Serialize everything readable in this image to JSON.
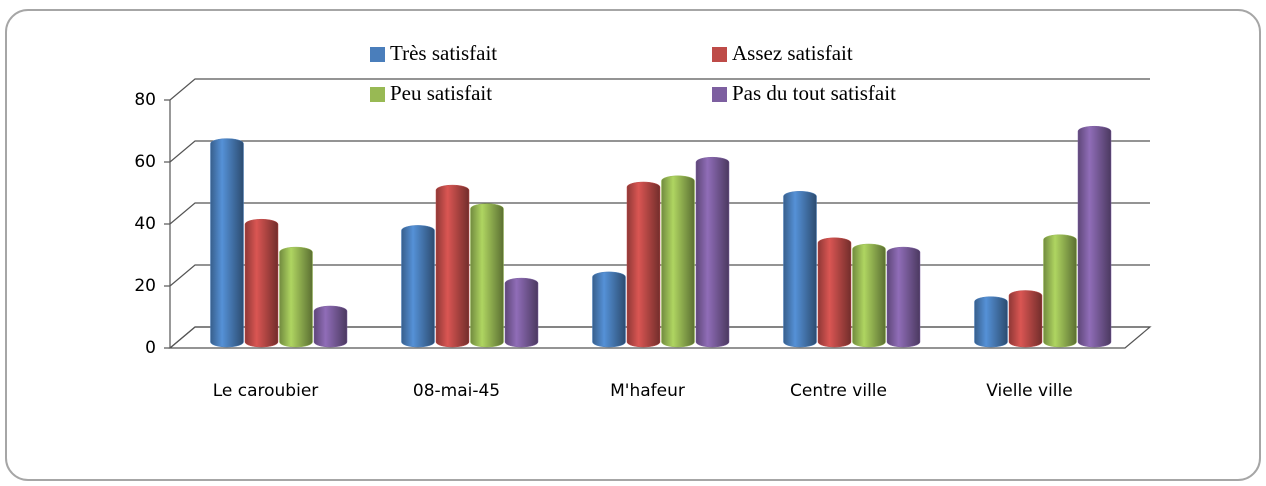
{
  "chart_data": {
    "type": "bar",
    "categories": [
      "Le caroubier",
      "08-mai-45",
      "M'hafeur",
      "Centre ville",
      "Vielle ville"
    ],
    "series": [
      {
        "name": "Très satisfait",
        "color": "#4a7ebb",
        "values": [
          64,
          36,
          21,
          47,
          13
        ]
      },
      {
        "name": "Assez satisfait",
        "color": "#be4b48",
        "values": [
          38,
          49,
          50,
          32,
          15
        ]
      },
      {
        "name": "Peu satisfait",
        "color": "#98b954",
        "values": [
          29,
          43,
          52,
          30,
          33
        ]
      },
      {
        "name": "Pas du tout satisfait",
        "color": "#7d5fa0",
        "values": [
          10,
          19,
          58,
          29,
          68
        ]
      }
    ],
    "ylim": [
      0,
      80
    ],
    "yticks": [
      0,
      20,
      40,
      60,
      80
    ],
    "grid": true
  }
}
